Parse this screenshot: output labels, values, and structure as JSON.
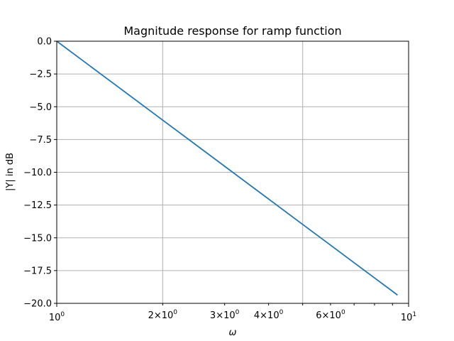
{
  "chart_data": {
    "type": "line",
    "title": "Magnitude response for ramp function",
    "xlabel": "ω",
    "ylabel": "|Y| in dB",
    "xscale": "log",
    "xlim": [
      1,
      10
    ],
    "ylim": [
      -20,
      0
    ],
    "grid": true,
    "y_ticks": [
      0,
      -2.5,
      -5,
      -7.5,
      -10,
      -12.5,
      -15,
      -17.5,
      -20
    ],
    "y_tick_labels": [
      "0.0",
      "−2.5",
      "−5.0",
      "−7.5",
      "−10.0",
      "−12.5",
      "−15.0",
      "−17.5",
      "−20.0"
    ],
    "x_major_ticks": [
      1,
      10
    ],
    "x_major_tick_labels": [
      "10",
      "10"
    ],
    "x_major_tick_exps": [
      "0",
      "1"
    ],
    "x_minor_ticks": [
      2,
      3,
      4,
      5,
      6,
      7,
      8,
      9
    ],
    "x_minor_labeled": [
      2,
      3,
      4,
      6
    ],
    "x_minor_tick_labels": [
      "2×10",
      "3×10",
      "4×10",
      "6×10"
    ],
    "x_minor_tick_exps": [
      "0",
      "0",
      "0",
      "0"
    ],
    "x_grid_at": [
      1,
      2,
      5,
      10
    ],
    "series": [
      {
        "color": "#1f77b4",
        "x": [
          1,
          1.5,
          2,
          3,
          4,
          5,
          6,
          7,
          8,
          9,
          9.3
        ],
        "y": [
          0,
          -3.52,
          -6.02,
          -9.54,
          -12.04,
          -13.98,
          -15.56,
          -16.9,
          -18.06,
          -19.08,
          -19.37
        ]
      }
    ]
  }
}
